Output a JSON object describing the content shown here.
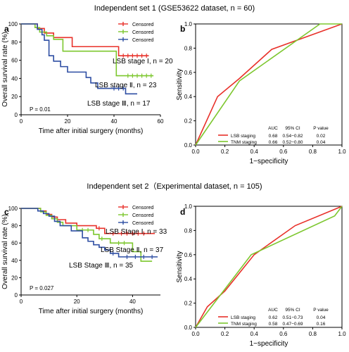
{
  "figure": {
    "set1_title": "Independent set 1 (GSE53622 dataset, n = 60)",
    "set2_title": "Independent set 2（Experimental dataset, n = 105)"
  },
  "chart_data": [
    {
      "id": "a",
      "type": "line",
      "subtype": "kaplan-meier",
      "panel_label": "a",
      "xlabel": "Time after initial surgery (months)",
      "ylabel": "Overall survival rate (%)",
      "xlim": [
        0,
        60
      ],
      "ylim": [
        0,
        100
      ],
      "xticks": [
        0,
        20,
        40,
        60
      ],
      "yticks": [
        0,
        20,
        40,
        60,
        80,
        100
      ],
      "grid": false,
      "legend_position": "top-right",
      "legend": [
        {
          "label": "Censored",
          "color": "#e8312a"
        },
        {
          "label": "Censored",
          "color": "#7dc72f"
        },
        {
          "label": "Censored",
          "color": "#2e4ea3"
        }
      ],
      "annotation": "P = 0.01",
      "series": [
        {
          "name": "LSB stage Ⅰ, n = 20",
          "color": "#e8312a",
          "x": [
            0,
            5,
            7,
            10,
            14,
            22,
            40,
            42,
            55
          ],
          "y": [
            100,
            100,
            95,
            90,
            85,
            75,
            75,
            65,
            65
          ],
          "censor_x": [
            44,
            46,
            48,
            50,
            52,
            54
          ]
        },
        {
          "name": "LSB stage Ⅱ, n = 23",
          "color": "#7dc72f",
          "x": [
            0,
            4,
            6,
            8,
            11,
            14,
            18,
            39,
            41,
            57
          ],
          "y": [
            100,
            100,
            96,
            91,
            87,
            83,
            70,
            70,
            43,
            43
          ],
          "censor_x": [
            46,
            48,
            50,
            52,
            54,
            56
          ]
        },
        {
          "name": "LSB stage Ⅲ, n = 17",
          "color": "#2e4ea3",
          "x": [
            0,
            5,
            7,
            9,
            10,
            12,
            14,
            17,
            20,
            25,
            28,
            30,
            33,
            45,
            50
          ],
          "y": [
            100,
            100,
            94,
            88,
            82,
            65,
            59,
            53,
            47,
            47,
            41,
            35,
            29,
            23,
            23
          ],
          "censor_x": [
            40,
            42,
            44
          ]
        }
      ],
      "labels": [
        "LSB stage Ⅰ, n = 20",
        "LSB stage Ⅱ, n = 23",
        "LSB stage Ⅲ, n = 17"
      ]
    },
    {
      "id": "b",
      "type": "line",
      "subtype": "roc",
      "panel_label": "b",
      "xlabel": "1−specificity",
      "ylabel": "Sensitivity",
      "xlim": [
        0,
        1
      ],
      "ylim": [
        0,
        1
      ],
      "xticks": [
        "0.0",
        "0.2",
        "0.4",
        "0.6",
        "0.8",
        "1.0"
      ],
      "yticks": [
        "0.0",
        "0.2",
        "0.4",
        "0.6",
        "0.8",
        "1.0"
      ],
      "grid": false,
      "series": [
        {
          "name": "LSB staging",
          "color": "#e8312a",
          "x": [
            0,
            0.15,
            0.3,
            0.52,
            1.0
          ],
          "y": [
            0,
            0.4,
            0.55,
            0.79,
            1.0
          ]
        },
        {
          "name": "TNM staging",
          "color": "#7dc72f",
          "x": [
            0,
            0.3,
            0.85,
            1.0
          ],
          "y": [
            0,
            0.53,
            1.0,
            1.0
          ]
        }
      ],
      "stats_table": {
        "headers": [
          "AUC",
          "95% CI",
          "P value"
        ],
        "rows": [
          {
            "label": "LSB staging",
            "color": "#e8312a",
            "auc": "0.68",
            "ci": "0.54−0.82",
            "p": "0.02"
          },
          {
            "label": "TNM staging",
            "color": "#7dc72f",
            "auc": "0.66",
            "ci": "0.52−0.80",
            "p": "0.04"
          }
        ]
      }
    },
    {
      "id": "c",
      "type": "line",
      "subtype": "kaplan-meier",
      "panel_label": "c",
      "xlabel": "Time after initial surgery (months)",
      "ylabel": "Overall survival rate (%)",
      "xlim": [
        0,
        50
      ],
      "ylim": [
        0,
        100
      ],
      "xticks": [
        0,
        20,
        40
      ],
      "yticks": [
        0,
        20,
        40,
        60,
        80,
        100
      ],
      "grid": false,
      "legend_position": "top-right",
      "legend": [
        {
          "label": "Censored",
          "color": "#e8312a"
        },
        {
          "label": "Censored",
          "color": "#7dc72f"
        },
        {
          "label": "Censored",
          "color": "#2e4ea3"
        }
      ],
      "annotation": "P = 0.027",
      "series": [
        {
          "name": "LSB Stage Ⅰ, n = 33",
          "color": "#e8312a",
          "x": [
            0,
            5,
            7,
            9,
            11,
            13,
            16,
            20,
            27,
            30,
            48
          ],
          "y": [
            100,
            100,
            97,
            93,
            90,
            87,
            83,
            80,
            77,
            71,
            71
          ],
          "censor_x": [
            28,
            33,
            36,
            38,
            40,
            42,
            44
          ]
        },
        {
          "name": "LSB Stage Ⅱ, n = 37",
          "color": "#7dc72f",
          "x": [
            0,
            5,
            7,
            9,
            11,
            13,
            15,
            20,
            26,
            28,
            32,
            40,
            43,
            47
          ],
          "y": [
            100,
            100,
            96,
            92,
            88,
            84,
            80,
            75,
            70,
            65,
            60,
            50,
            39,
            39
          ],
          "censor_x": [
            22,
            24,
            29,
            35,
            37
          ]
        },
        {
          "name": "LSB Stage Ⅲ, n = 35",
          "color": "#2e4ea3",
          "x": [
            0,
            4,
            6,
            8,
            10,
            12,
            14,
            18,
            22,
            24,
            26,
            28,
            30,
            32,
            35,
            49
          ],
          "y": [
            100,
            100,
            97,
            94,
            91,
            85,
            80,
            74,
            66,
            62,
            58,
            55,
            52,
            48,
            44,
            44
          ],
          "censor_x": [
            33,
            38,
            41,
            44,
            47
          ]
        }
      ],
      "labels": [
        "LSB Stage Ⅰ, n = 33",
        "LSB Stage Ⅱ, n = 37",
        "LSB Stage Ⅲ, n = 35"
      ]
    },
    {
      "id": "d",
      "type": "line",
      "subtype": "roc",
      "panel_label": "d",
      "xlabel": "1−specificity",
      "ylabel": "Sensitivity",
      "xlim": [
        0,
        1
      ],
      "ylim": [
        0,
        1
      ],
      "xticks": [
        "0.0",
        "0.2",
        "0.4",
        "0.6",
        "0.8",
        "1.0"
      ],
      "yticks": [
        "0.0",
        "0.2",
        "0.4",
        "0.6",
        "0.8",
        "1.0"
      ],
      "grid": false,
      "series": [
        {
          "name": "LSB staging",
          "color": "#e8312a",
          "x": [
            0,
            0.08,
            0.2,
            0.4,
            0.68,
            1.0
          ],
          "y": [
            0,
            0.17,
            0.3,
            0.6,
            0.84,
            1.0
          ]
        },
        {
          "name": "TNM staging",
          "color": "#7dc72f",
          "x": [
            0,
            0.38,
            0.95,
            1.0
          ],
          "y": [
            0,
            0.6,
            0.92,
            1.0
          ]
        }
      ],
      "stats_table": {
        "headers": [
          "AUC",
          "95% CI",
          "P value"
        ],
        "rows": [
          {
            "label": "LSB staging",
            "color": "#e8312a",
            "auc": "0.62",
            "ci": "0.51−0.73",
            "p": "0.04"
          },
          {
            "label": "TNM staging",
            "color": "#7dc72f",
            "auc": "0.58",
            "ci": "0.47−0.69",
            "p": "0.16"
          }
        ]
      }
    }
  ]
}
